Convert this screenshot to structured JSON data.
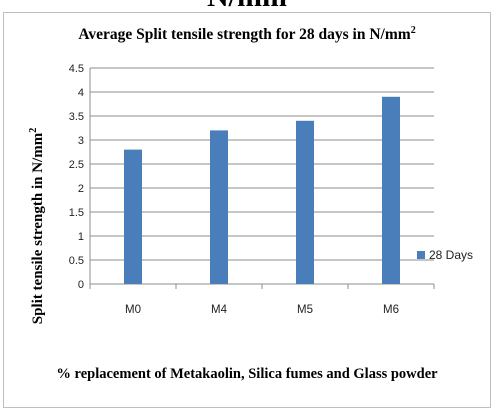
{
  "header_cut_text": "N/mm",
  "chart_data": {
    "type": "bar",
    "title": "Average Split tensile strength for 28 days in N/mm",
    "title_sup": "2",
    "xlabel": "% replacement of  Metakaolin, Silica fumes and Glass powder",
    "ylabel": "Split tensile  strength in  N/mm",
    "ylabel_sup": "2",
    "categories": [
      "M0",
      "M4",
      "M5",
      "M6"
    ],
    "series": [
      {
        "name": "28 Days",
        "values": [
          2.8,
          3.2,
          3.4,
          3.9
        ]
      }
    ],
    "ylim": [
      0,
      4.5
    ],
    "yticks": [
      0,
      0.5,
      1,
      1.5,
      2,
      2.5,
      3,
      3.5,
      4,
      4.5
    ],
    "ytick_labels": [
      "0",
      "0.5",
      "1",
      "1.5",
      "2",
      "2.5",
      "3",
      "3.5",
      "4",
      "4.5"
    ],
    "grid": true,
    "legend_position": "right",
    "bar_color": "#4a7ebb"
  }
}
